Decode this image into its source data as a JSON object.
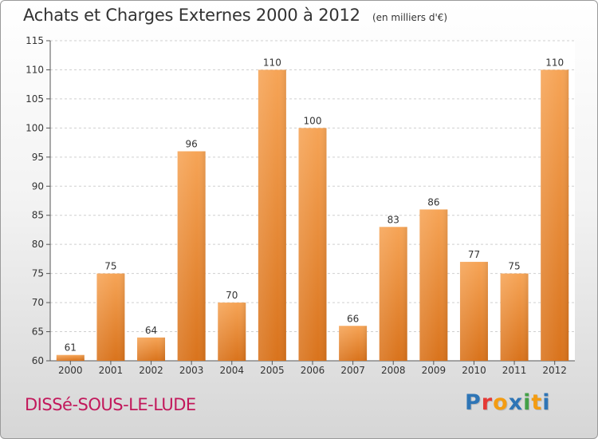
{
  "header": {
    "title": "Achats et Charges Externes 2000 à 2012",
    "unit": "(en milliers d'€)"
  },
  "footer": {
    "place": "DISSé-SOUS-LE-LUDE",
    "logo": "Proxiti",
    "logo_colors": [
      "#2e75b6",
      "#e53935",
      "#f39c12",
      "#2e75b6",
      "#43a047",
      "#f39c12",
      "#2e75b6"
    ]
  },
  "chart_data": {
    "type": "bar",
    "title": "Achats et Charges Externes 2000 à 2012",
    "subtitle": "(en milliers d'€)",
    "categories": [
      "2000",
      "2001",
      "2002",
      "2003",
      "2004",
      "2005",
      "2006",
      "2007",
      "2008",
      "2009",
      "2010",
      "2011",
      "2012"
    ],
    "values": [
      61,
      75,
      64,
      96,
      70,
      110,
      100,
      66,
      83,
      86,
      77,
      75,
      110
    ],
    "ylim": [
      60,
      115
    ],
    "yticks": [
      60,
      65,
      70,
      75,
      80,
      85,
      90,
      95,
      100,
      105,
      110,
      115
    ],
    "grid": true,
    "bar_color": "#f0923a",
    "xlabel": "",
    "ylabel": ""
  }
}
